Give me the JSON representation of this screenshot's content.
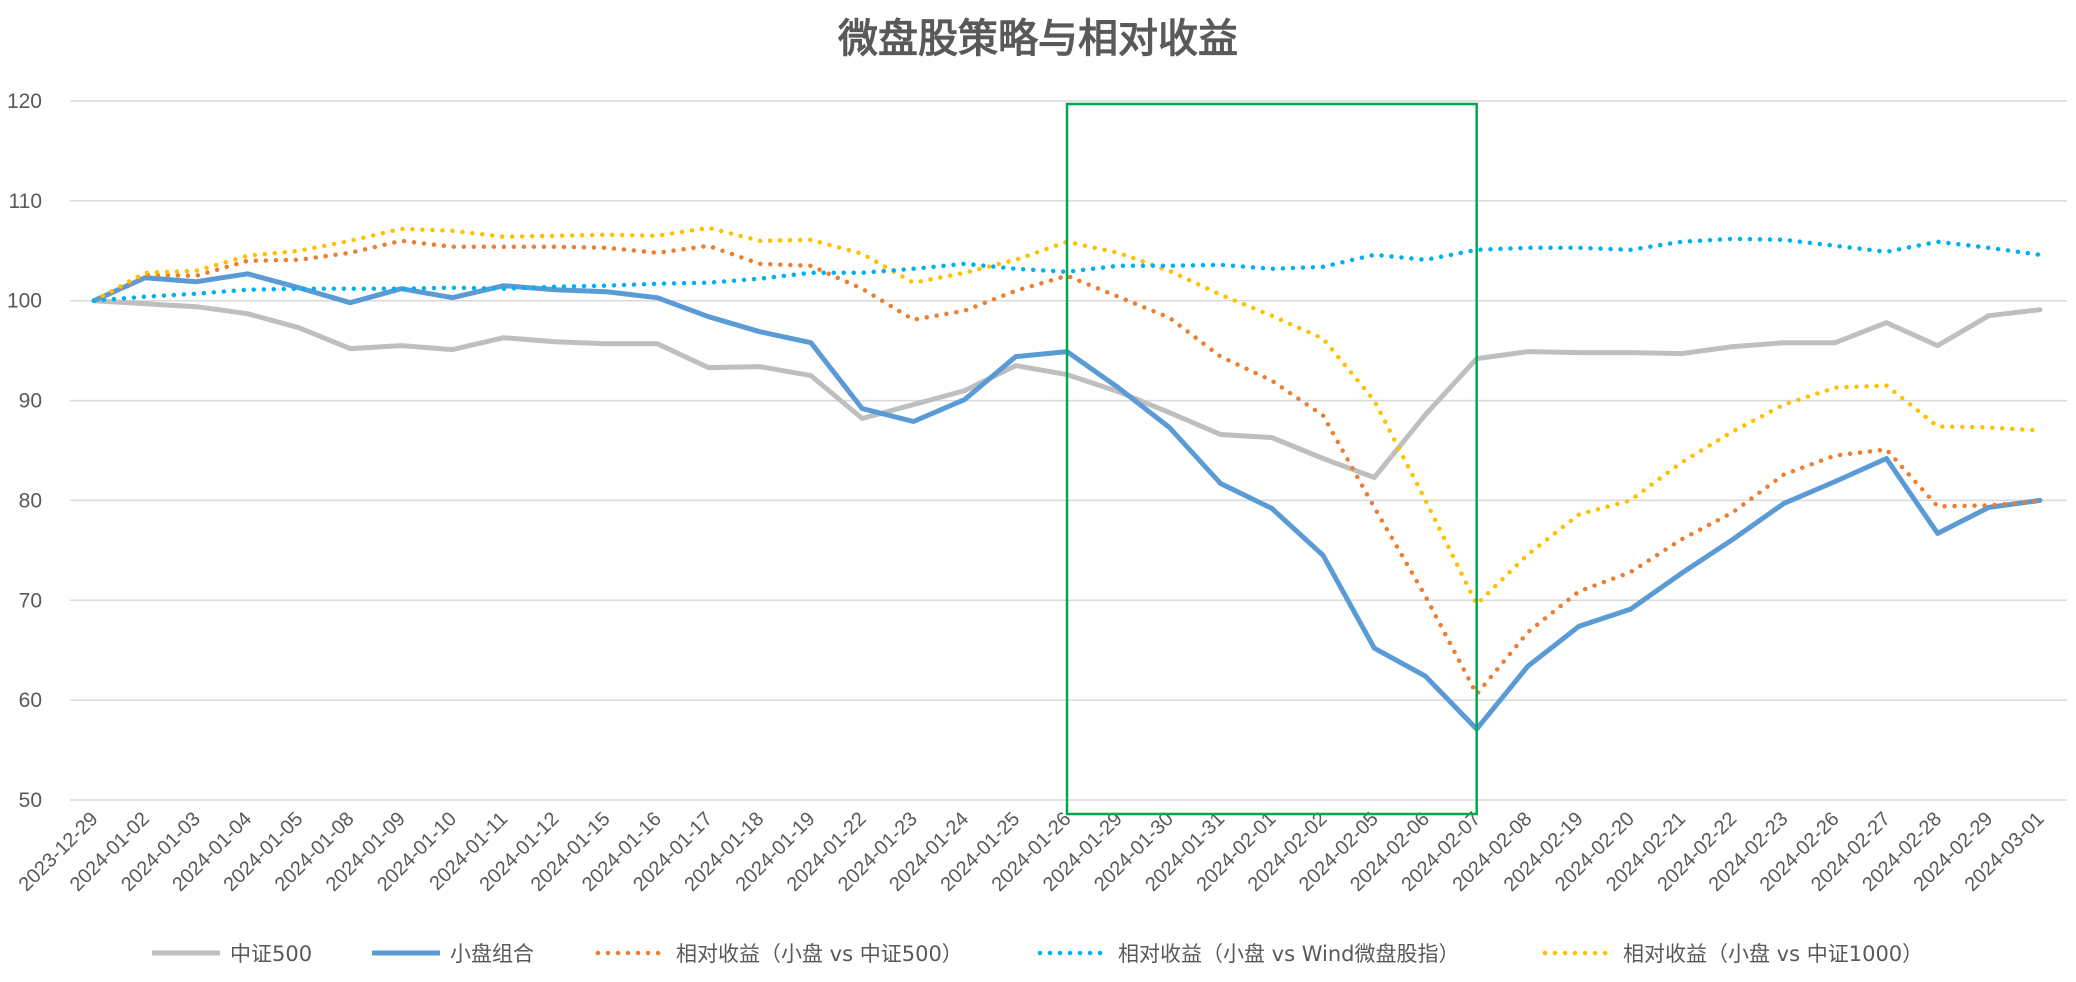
{
  "chart_data": {
    "type": "line",
    "title": "微盘股策略与相对收益",
    "xlabel": "",
    "ylabel": "",
    "ylim": [
      50,
      120
    ],
    "yticks": [
      50,
      60,
      70,
      80,
      90,
      100,
      110,
      120
    ],
    "grid": true,
    "legend_position": "bottom",
    "highlight_box": {
      "x_start": "2024-01-26",
      "x_end": "2024-02-07",
      "color": "#00A84F"
    },
    "categories": [
      "2023-12-29",
      "2024-01-02",
      "2024-01-03",
      "2024-01-04",
      "2024-01-05",
      "2024-01-08",
      "2024-01-09",
      "2024-01-10",
      "2024-01-11",
      "2024-01-12",
      "2024-01-15",
      "2024-01-16",
      "2024-01-17",
      "2024-01-18",
      "2024-01-19",
      "2024-01-22",
      "2024-01-23",
      "2024-01-24",
      "2024-01-25",
      "2024-01-26",
      "2024-01-29",
      "2024-01-30",
      "2024-01-31",
      "2024-02-01",
      "2024-02-02",
      "2024-02-05",
      "2024-02-06",
      "2024-02-07",
      "2024-02-08",
      "2024-02-19",
      "2024-02-20",
      "2024-02-21",
      "2024-02-22",
      "2024-02-23",
      "2024-02-26",
      "2024-02-27",
      "2024-02-28",
      "2024-02-29",
      "2024-03-01"
    ],
    "series": [
      {
        "name": "中证500",
        "color": "#BFBFBF",
        "style": "solid",
        "values": [
          100,
          99.7,
          99.4,
          98.7,
          97.3,
          95.2,
          95.5,
          95.1,
          96.3,
          95.9,
          95.7,
          95.7,
          93.3,
          93.4,
          92.5,
          88.2,
          89.6,
          91.0,
          93.5,
          92.6,
          90.9,
          88.8,
          86.6,
          86.3,
          84.2,
          82.3,
          88.6,
          94.2,
          94.9,
          94.8,
          94.8,
          94.7,
          95.4,
          95.8,
          95.8,
          97.8,
          95.5,
          98.5,
          99.1
        ]
      },
      {
        "name": "小盘组合",
        "color": "#5B9BD5",
        "style": "solid",
        "values": [
          100,
          102.3,
          101.9,
          102.7,
          101.3,
          99.8,
          101.2,
          100.3,
          101.5,
          101.1,
          100.9,
          100.3,
          98.4,
          96.9,
          95.8,
          89.2,
          87.9,
          90.1,
          94.4,
          94.9,
          91.3,
          87.3,
          81.7,
          79.2,
          74.5,
          65.2,
          62.4,
          57.1,
          63.4,
          67.4,
          69.1,
          72.7,
          76.1,
          79.7,
          81.9,
          84.2,
          76.7,
          79.3,
          80.0
        ]
      },
      {
        "name": "相对收益（小盘 vs 中证500）",
        "color": "#ED7D31",
        "style": "dotted",
        "values": [
          100,
          102.6,
          102.5,
          104.0,
          104.1,
          104.8,
          106.0,
          105.4,
          105.4,
          105.4,
          105.3,
          104.8,
          105.5,
          103.7,
          103.5,
          101.2,
          98.1,
          99.0,
          101.0,
          102.5,
          100.4,
          98.3,
          94.4,
          92.0,
          88.5,
          79.3,
          70.4,
          60.6,
          66.8,
          70.9,
          72.8,
          76.1,
          78.8,
          82.6,
          84.5,
          85.1,
          79.4,
          79.5,
          79.9
        ]
      },
      {
        "name": "相对收益（小盘 vs Wind微盘股指）",
        "color": "#00B0F0",
        "style": "dotted",
        "values": [
          100,
          100.4,
          100.7,
          101.1,
          101.2,
          101.2,
          101.2,
          101.3,
          101.2,
          101.4,
          101.5,
          101.7,
          101.8,
          102.2,
          102.8,
          102.8,
          103.2,
          103.7,
          103.2,
          102.9,
          103.5,
          103.5,
          103.6,
          103.2,
          103.4,
          104.6,
          104.1,
          105.1,
          105.3,
          105.3,
          105.1,
          105.9,
          106.2,
          106.1,
          105.5,
          104.9,
          105.9,
          105.3,
          104.6
        ]
      },
      {
        "name": "相对收益（小盘 vs 中证1000）",
        "color": "#FFC000",
        "style": "dotted",
        "values": [
          100,
          102.8,
          103.0,
          104.5,
          105.0,
          106.0,
          107.2,
          107.0,
          106.4,
          106.5,
          106.6,
          106.5,
          107.3,
          106.0,
          106.1,
          104.7,
          101.8,
          102.8,
          104.1,
          105.9,
          104.8,
          103.0,
          100.6,
          98.5,
          96.2,
          90.0,
          80.0,
          69.6,
          74.6,
          78.6,
          80.0,
          83.8,
          86.9,
          89.6,
          91.3,
          91.5,
          87.4,
          87.3,
          87.0
        ]
      }
    ]
  }
}
